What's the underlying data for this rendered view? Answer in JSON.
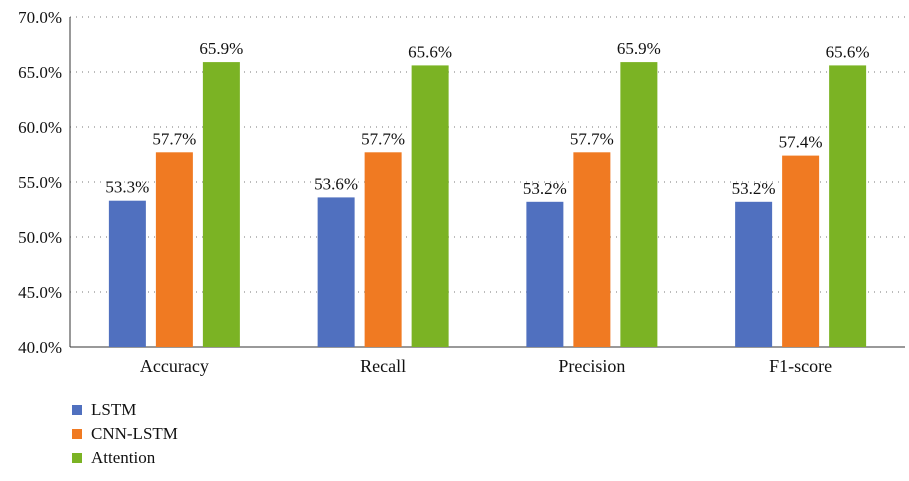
{
  "chart_data": {
    "type": "bar",
    "categories": [
      "Accuracy",
      "Recall",
      "Precision",
      "F1-score"
    ],
    "series": [
      {
        "name": "LSTM",
        "color": "#5070BF",
        "values": [
          53.3,
          53.6,
          53.2,
          53.2
        ],
        "labels": [
          "53.3%",
          "53.6%",
          "53.2%",
          "53.2%"
        ]
      },
      {
        "name": "CNN-LSTM",
        "color": "#F07A22",
        "values": [
          57.7,
          57.7,
          57.7,
          57.4
        ],
        "labels": [
          "57.7%",
          "57.7%",
          "57.7%",
          "57.4%"
        ]
      },
      {
        "name": "Attention",
        "color": "#7BB324",
        "values": [
          65.9,
          65.6,
          65.9,
          65.6
        ],
        "labels": [
          "65.9%",
          "65.6%",
          "65.9%",
          "65.6%"
        ]
      }
    ],
    "ylim": [
      40,
      70
    ],
    "yticks": [
      40,
      45,
      50,
      55,
      60,
      65,
      70
    ],
    "ytick_labels": [
      "40.0%",
      "45.0%",
      "50.0%",
      "55.0%",
      "60.0%",
      "65.0%",
      "70.0%"
    ],
    "grid": true,
    "legend_position": "bottom-left"
  }
}
